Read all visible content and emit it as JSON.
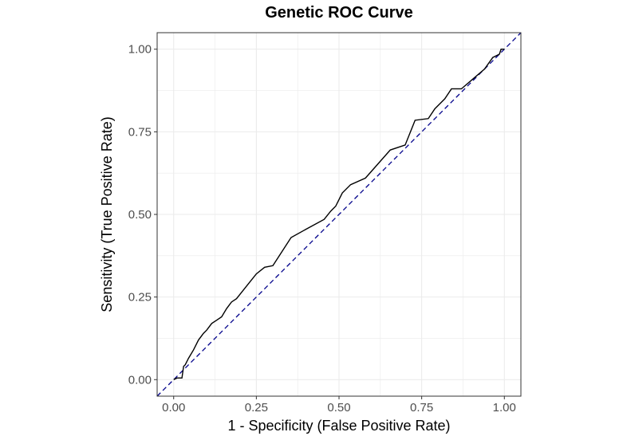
{
  "chart_data": {
    "type": "line",
    "title": "Genetic ROC Curve",
    "xlabel": "1 - Specificity (False Positive Rate)",
    "ylabel": "Sensitivity (True Positive Rate)",
    "xlim": [
      -0.05,
      1.05
    ],
    "ylim": [
      -0.05,
      1.05
    ],
    "x_ticks": [
      "0.00",
      "0.25",
      "0.50",
      "0.75",
      "1.00"
    ],
    "y_ticks": [
      "0.00",
      "0.25",
      "0.50",
      "0.75",
      "1.00"
    ],
    "grid": true,
    "colors": {
      "roc": "#000000",
      "reference": "#00008b",
      "grid": "#ebebeb",
      "border": "#333333"
    },
    "series": [
      {
        "x": [
          0.0,
          0.01,
          0.025,
          0.03,
          0.035,
          0.045,
          0.06,
          0.075,
          0.09,
          0.1,
          0.115,
          0.13,
          0.145,
          0.16,
          0.175,
          0.19,
          0.21,
          0.23,
          0.25,
          0.275,
          0.3,
          0.355,
          0.4,
          0.455,
          0.475,
          0.49,
          0.51,
          0.535,
          0.58,
          0.655,
          0.7,
          0.73,
          0.77,
          0.79,
          0.82,
          0.84,
          0.87,
          0.905,
          0.94,
          0.965,
          0.985,
          0.99,
          1.0
        ],
        "y": [
          0.0,
          0.005,
          0.005,
          0.04,
          0.045,
          0.065,
          0.09,
          0.12,
          0.14,
          0.15,
          0.17,
          0.18,
          0.19,
          0.215,
          0.235,
          0.245,
          0.27,
          0.295,
          0.32,
          0.34,
          0.345,
          0.43,
          0.455,
          0.485,
          0.51,
          0.525,
          0.565,
          0.59,
          0.61,
          0.695,
          0.71,
          0.785,
          0.79,
          0.82,
          0.85,
          0.88,
          0.88,
          0.91,
          0.94,
          0.975,
          0.985,
          1.0,
          1.0
        ]
      },
      {
        "x": [
          -0.05,
          1.05
        ],
        "y": [
          -0.05,
          1.05
        ]
      }
    ]
  }
}
